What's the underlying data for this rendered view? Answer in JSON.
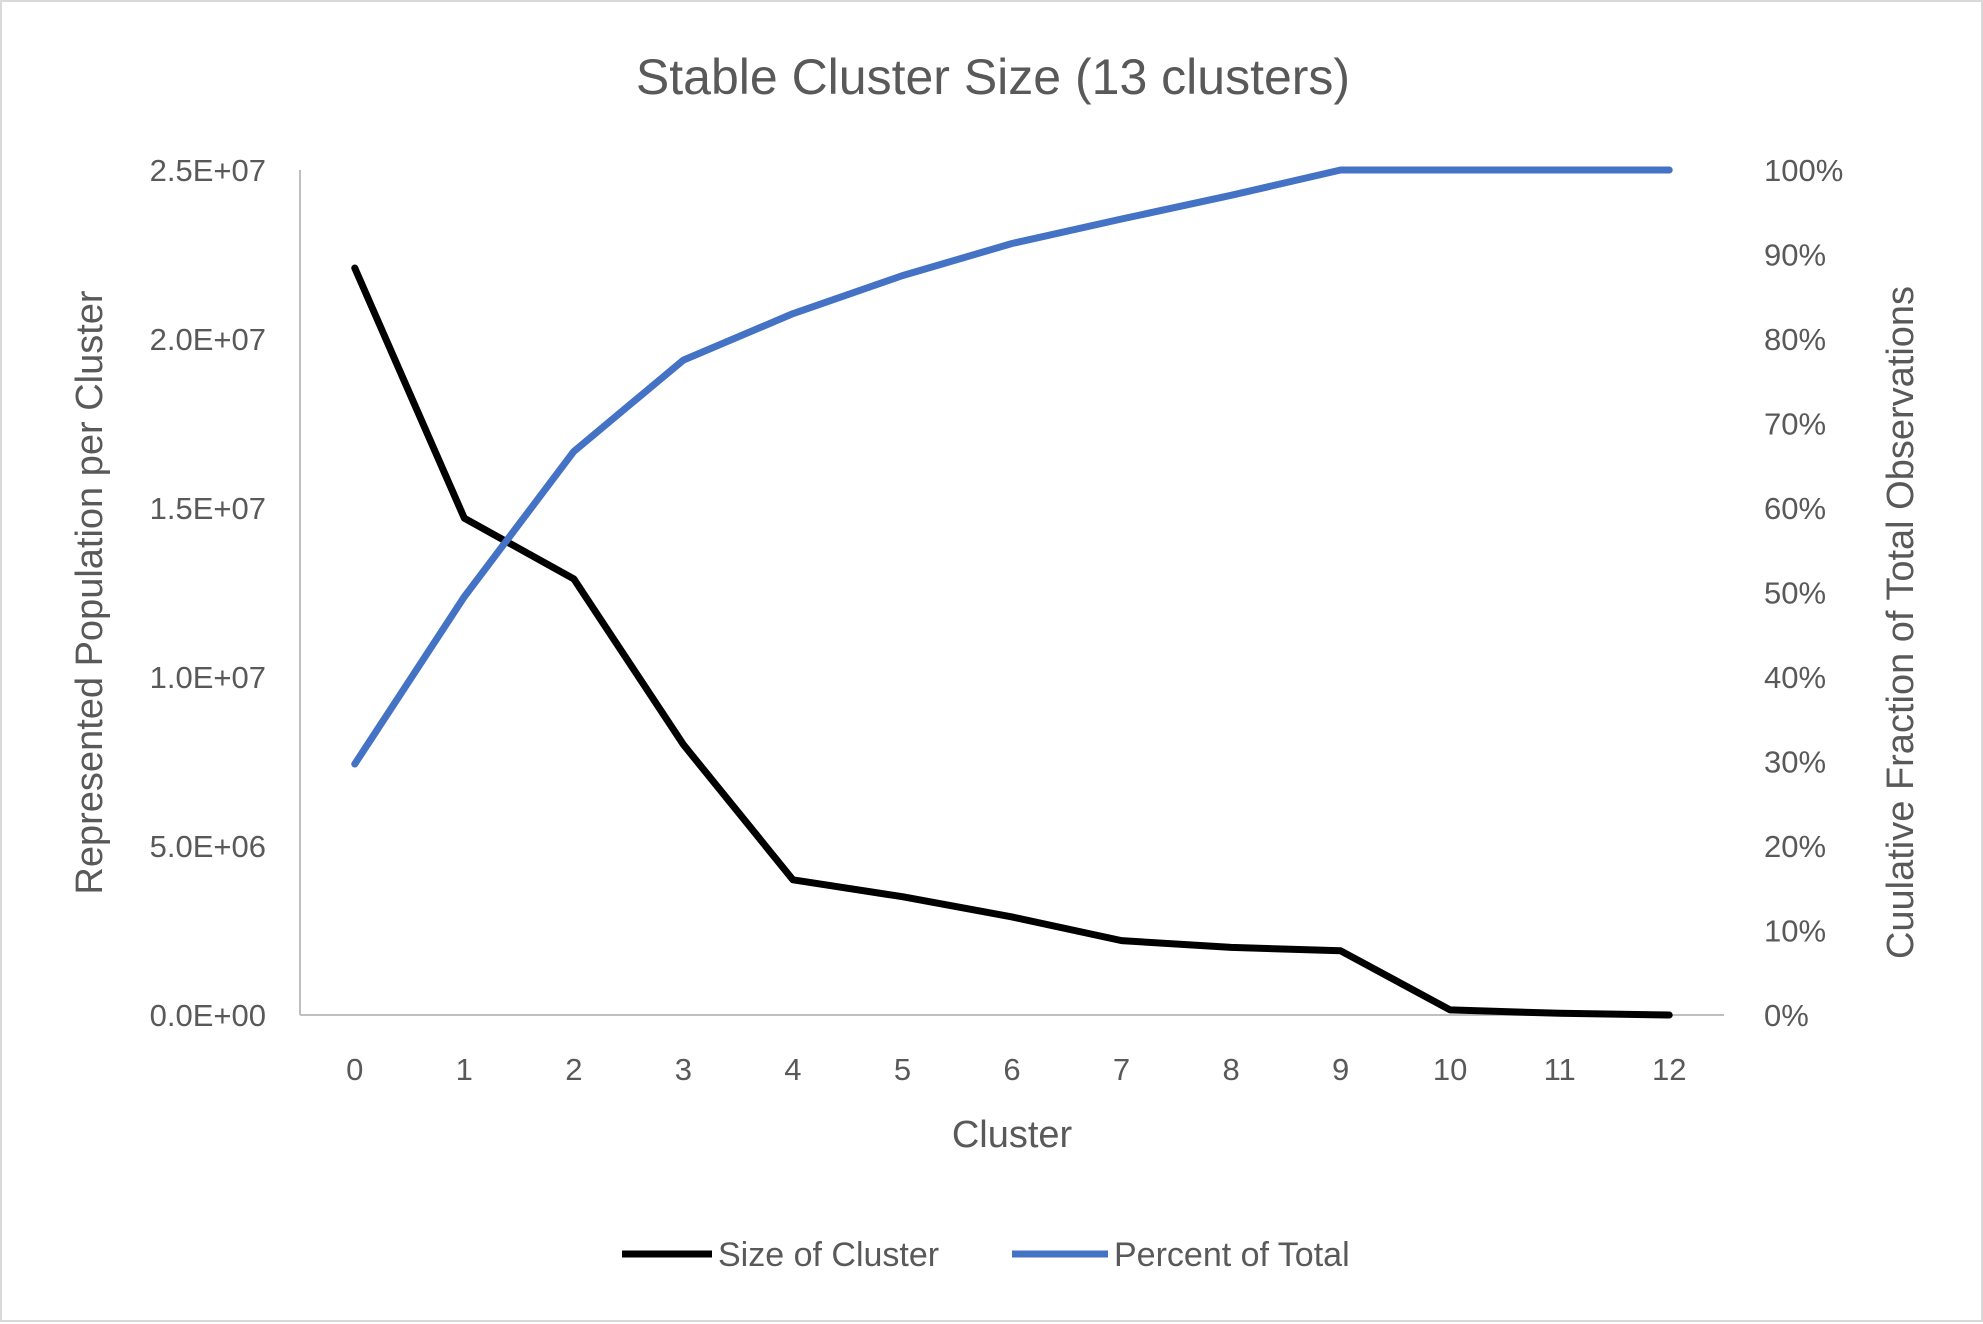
{
  "chart_data": {
    "type": "line",
    "title": "Stable Cluster Size (13 clusters)",
    "xlabel": "Cluster",
    "ylabel": "Represented Population per Cluster",
    "y2label": "Cuulative Fraction of Total Observations",
    "categories": [
      "0",
      "1",
      "2",
      "3",
      "4",
      "5",
      "6",
      "7",
      "8",
      "9",
      "10",
      "11",
      "12"
    ],
    "ylim": [
      0,
      25000000
    ],
    "y_ticks": [
      "0.0E+00",
      "5.0E+06",
      "1.0E+07",
      "1.5E+07",
      "2.0E+07",
      "2.5E+07"
    ],
    "y2lim": [
      0,
      1
    ],
    "y2_ticks": [
      "0%",
      "10%",
      "20%",
      "30%",
      "40%",
      "50%",
      "60%",
      "70%",
      "80%",
      "90%",
      "100%"
    ],
    "grid": false,
    "legend_position": "bottom",
    "series": [
      {
        "name": "Size of Cluster",
        "axis": "left",
        "color": "#000000",
        "values": [
          22100000,
          14700000,
          12900000,
          8000000,
          4000000,
          3500000,
          2900000,
          2200000,
          2000000,
          1900000,
          150000,
          50000,
          0
        ]
      },
      {
        "name": "Percent of Total",
        "axis": "right",
        "color": "#4472c4",
        "values": [
          0.297,
          0.495,
          0.667,
          0.775,
          0.83,
          0.875,
          0.913,
          0.942,
          0.97,
          1.0,
          1.0,
          1.0,
          1.0
        ]
      }
    ]
  }
}
